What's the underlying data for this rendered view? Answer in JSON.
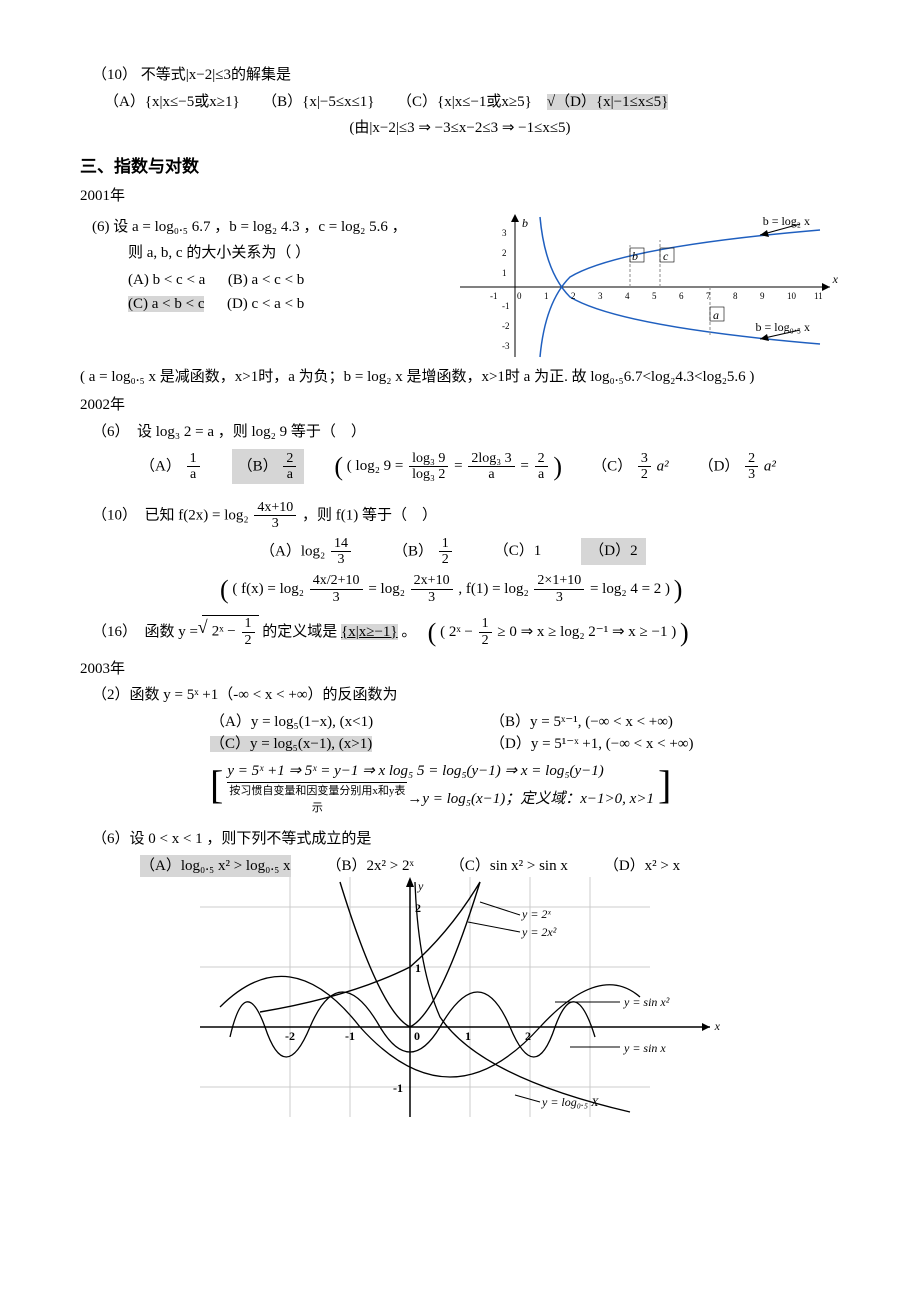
{
  "q10": {
    "label": "（10）",
    "stem": "不等式|x−2|≤3的解集是",
    "opts": {
      "A": "（A）{x|x≤−5或x≥1}",
      "B": "（B）{x|−5≤x≤1}",
      "C": "（C）{x|x≤−1或x≥5}",
      "D_prefix": "√（D）",
      "D": "{x|−1≤x≤5}"
    },
    "explain": "(由|x−2|≤3 ⇒ −3≤x−2≤3 ⇒ −1≤x≤5)"
  },
  "section3": {
    "title": "三、指数与对数"
  },
  "y2001": {
    "year": "2001年",
    "q6": {
      "label": "(6)  设 a = log₀.₅ 6.7 ，b = log₂ 4.3 ，c = log₂ 5.6 ，",
      "line2": "则 a, b, c 的大小关系为（        ）",
      "optA": "(A)  b < c < a",
      "optB": "(B)  a < c < b",
      "optC": "(C)  a < b < c",
      "optD": "(D)  c < a < b"
    },
    "explain": "( a = log₀.₅ x 是减函数，x>1时，a 为负；b = log₂ x 是增函数，x>1时 a 为正. 故 log₀.₅6.7<log₂4.3<log₂5.6 )",
    "chart": {
      "curve_color": "#1f5fbf",
      "axis_label_b": "b",
      "axis_label_x": "x",
      "top_label": "b = log₂ x",
      "bot_label": "b = log₀.₅ x",
      "b_lbl": "b",
      "c_lbl": "c",
      "a_lbl": "a",
      "x_ticks": [
        "-1",
        "0",
        "1",
        "2",
        "3",
        "4",
        "5",
        "6",
        "7",
        "8",
        "9",
        "10",
        "11"
      ],
      "y_ticks": [
        "3",
        "2",
        "1",
        "-1",
        "-2",
        "-3"
      ]
    }
  },
  "y2002": {
    "year": "2002年",
    "q6": {
      "stem_pre": "（6）　设 log₃ 2 = a ，则 log₂ 9 等于（　）",
      "A_pre": "（A）",
      "A_frac_n": "1",
      "A_frac_d": "a",
      "B_pre": "（B）",
      "B_frac_n": "2",
      "B_frac_d": "a",
      "explain_pre": "( log₂ 9 =",
      "explain_frac1_n": "log₃ 9",
      "explain_frac1_d": "log₃ 2",
      "explain_mid1": "=",
      "explain_frac2_n": "2log₃ 3",
      "explain_frac2_d": "a",
      "explain_mid2": "=",
      "explain_frac3_n": "2",
      "explain_frac3_d": "a",
      "explain_suf": ")",
      "C_pre": "（C）",
      "C_frac_n": "3",
      "C_frac_d": "2",
      "C_suf": "a²",
      "D_pre": "（D）",
      "D_frac_n": "2",
      "D_frac_d": "3",
      "D_suf": "a²"
    },
    "q10": {
      "stem_pre": "（10）　已知 f(2x) = log₂",
      "stem_frac_n": "4x+10",
      "stem_frac_d": "3",
      "stem_suf": "，则 f(1) 等于（　）",
      "A_pre": "（A）log₂",
      "A_frac_n": "14",
      "A_frac_d": "3",
      "B_pre": "（B）",
      "B_frac_n": "1",
      "B_frac_d": "2",
      "C": "（C）1",
      "D": "（D）2",
      "e_pre": "( f(x) = log₂",
      "e_f1n": "4x/2+10",
      "e_f1d": "3",
      "e_m1": "= log₂",
      "e_f2n": "2x+10",
      "e_f2d": "3",
      "e_m2": ",  f(1) = log₂",
      "e_f3n": "2×1+10",
      "e_f3d": "3",
      "e_m3": "= log₂ 4 = 2 )"
    },
    "q16": {
      "stem_pre": "（16）　函数 y =",
      "sqrt_inner_pre": "2ˣ −",
      "sqrt_frac_n": "1",
      "sqrt_frac_d": "2",
      "stem_mid": "的定义域是",
      "ans": "{x|x≥−1}",
      "stem_suf": "。",
      "e_pre": "( 2ˣ −",
      "e_frac_n": "1",
      "e_frac_d": "2",
      "e_mid": "≥ 0 ⇒ x ≥ log₂ 2⁻¹ ⇒ x ≥ −1 )"
    }
  },
  "y2003": {
    "year": "2003年",
    "q2": {
      "stem": "（2）函数 y = 5ˣ +1（-∞ < x < +∞）的反函数为",
      "A": "（A）y = log₅(1−x),   (x<1)",
      "B": "（B）y = 5ˣ⁻¹,   (−∞ < x < +∞)",
      "C": "（C）y = log₅(x−1),   (x>1)",
      "D": "（D）y = 5¹⁻ˣ +1,   (−∞ < x < +∞)",
      "e1": "y = 5ˣ +1 ⇒ 5ˣ = y−1 ⇒ x log₅ 5 = log₅(y−1) ⇒ x = log₅(y−1)",
      "e_arrow": "按习惯自变量和因变量分别用x和y表示",
      "e2": "y = log₅(x−1)；定义域：x−1>0,  x>1"
    },
    "q6": {
      "stem": "（6）设 0 < x < 1 ，则下列不等式成立的是",
      "A": "（A）log₀.₅ x² > log₀.₅ x",
      "B": "（B）2x² > 2ˣ",
      "C": "（C）sin x² > sin x",
      "D": "（D）x² > x"
    },
    "chart": {
      "bg": "#ffffff",
      "axis": "#000000",
      "grid": "#cccccc",
      "labels": {
        "y": "y",
        "x": "x",
        "0": "0",
        "1": "1",
        "2h": "2",
        "2v": "2",
        "-1": "-1",
        "-1y": "-1",
        "-2": "-2"
      },
      "curve_labels": {
        "a": "y = 2ˣ",
        "b": "y = 2x²",
        "c": "y = sin x²",
        "d": "y = sin x",
        "e": "y = log₀.₅ X"
      }
    }
  }
}
